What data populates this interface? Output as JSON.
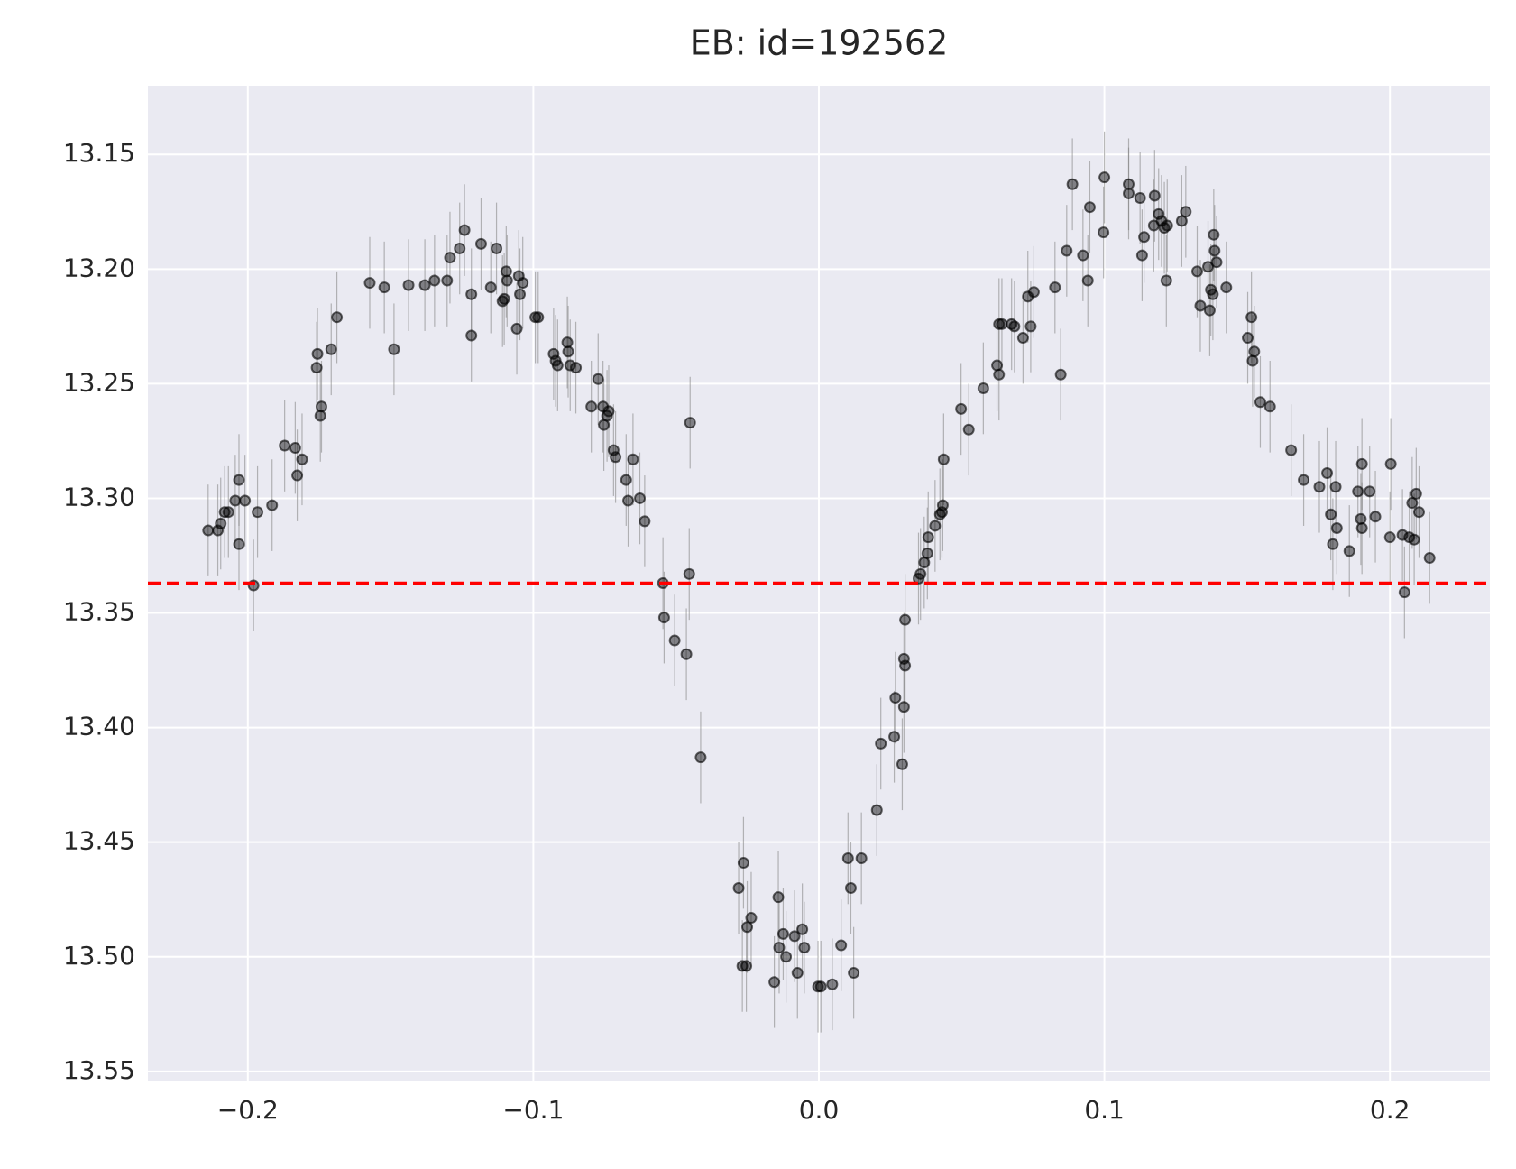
{
  "chart_data": {
    "type": "scatter",
    "title": "EB: id=192562",
    "xlim": [
      -0.235,
      0.235
    ],
    "xticks": [
      {
        "value": -0.2,
        "label": "−0.2"
      },
      {
        "value": -0.1,
        "label": "−0.1"
      },
      {
        "value": 0.0,
        "label": "0.0"
      },
      0.1,
      0.2
    ],
    "ylim": [
      13.554,
      13.12
    ],
    "invert_y": true,
    "yticks": [
      {
        "value": 13.15,
        "label": "13.15"
      },
      {
        "value": 13.2,
        "label": "13.20"
      },
      {
        "value": 13.25,
        "label": "13.25"
      },
      {
        "value": 13.3,
        "label": "13.30"
      },
      {
        "value": 13.35,
        "label": "13.35"
      },
      {
        "value": 13.4,
        "label": "13.40"
      },
      {
        "value": 13.45,
        "label": "13.45"
      },
      {
        "value": 13.5,
        "label": "13.50"
      },
      {
        "value": 13.55,
        "label": "13.55"
      }
    ],
    "grid": true,
    "color": "#000000",
    "yerr": 0.02,
    "hline": 13.337,
    "hline_color": "#ff0000",
    "x": [
      -0.2139,
      -0.2105,
      -0.2095,
      -0.2081,
      -0.2068,
      -0.2044,
      -0.2031,
      -0.2031,
      -0.201,
      -0.198,
      -0.1966,
      -0.1915,
      -0.1871,
      -0.1834,
      -0.1827,
      -0.181,
      -0.1759,
      -0.1756,
      -0.1746,
      -0.1742,
      -0.1708,
      -0.1688,
      -0.1573,
      -0.1522,
      -0.1488,
      -0.1437,
      -0.138,
      -0.1346,
      -0.1302,
      -0.1292,
      -0.1258,
      -0.1241,
      -0.1217,
      -0.1217,
      -0.1183,
      -0.1149,
      -0.1129,
      -0.1108,
      -0.1102,
      -0.1095,
      -0.1092,
      -0.1058,
      -0.1051,
      -0.1047,
      -0.1037,
      -0.0993,
      -0.0983,
      -0.0929,
      -0.0922,
      -0.0915,
      -0.0881,
      -0.0878,
      -0.0871,
      -0.0851,
      -0.0797,
      -0.0773,
      -0.0756,
      -0.0753,
      -0.0742,
      -0.0736,
      -0.0719,
      -0.0712,
      -0.0675,
      -0.0668,
      -0.0651,
      -0.0627,
      -0.061,
      -0.0546,
      -0.0542,
      -0.0505,
      -0.0464,
      -0.0454,
      -0.0451,
      -0.0414,
      -0.0281,
      -0.0268,
      -0.0264,
      -0.0254,
      -0.0251,
      -0.0237,
      -0.0156,
      -0.0142,
      -0.0139,
      -0.0125,
      -0.0115,
      -0.0085,
      -0.0075,
      -0.0058,
      -0.0051,
      -0.0003,
      0.0007,
      0.0047,
      0.0078,
      0.0102,
      0.0112,
      0.0122,
      0.0149,
      0.0203,
      0.0217,
      0.0264,
      0.0268,
      0.0292,
      0.0298,
      0.0298,
      0.0302,
      0.0302,
      0.0349,
      0.0356,
      0.0369,
      0.038,
      0.0383,
      0.0407,
      0.0424,
      0.0431,
      0.0434,
      0.0437,
      0.0498,
      0.0525,
      0.0576,
      0.0624,
      0.0631,
      0.0631,
      0.0641,
      0.0675,
      0.0685,
      0.0715,
      0.0732,
      0.0742,
      0.0753,
      0.0827,
      0.0847,
      0.0868,
      0.0888,
      0.0925,
      0.0942,
      0.0949,
      0.0997,
      0.1,
      0.1085,
      0.1085,
      0.1125,
      0.1132,
      0.1139,
      0.1176,
      0.1173,
      0.119,
      0.12,
      0.121,
      0.1217,
      0.122,
      0.1271,
      0.1285,
      0.1325,
      0.1336,
      0.1363,
      0.1369,
      0.1373,
      0.138,
      0.1383,
      0.1386,
      0.1393,
      0.1427,
      0.1502,
      0.1515,
      0.1519,
      0.1525,
      0.1546,
      0.158,
      0.1654,
      0.1698,
      0.1753,
      0.178,
      0.1793,
      0.18,
      0.181,
      0.1814,
      0.1858,
      0.1888,
      0.1898,
      0.1902,
      0.1902,
      0.1929,
      0.1949,
      0.2,
      0.2003,
      0.2044,
      0.2051,
      0.2068,
      0.2078,
      0.2085,
      0.2092,
      0.2102,
      0.2139
    ],
    "y": [
      13.314,
      13.314,
      13.311,
      13.306,
      13.306,
      13.301,
      13.292,
      13.32,
      13.301,
      13.338,
      13.306,
      13.303,
      13.277,
      13.278,
      13.29,
      13.283,
      13.243,
      13.237,
      13.264,
      13.26,
      13.235,
      13.221,
      13.206,
      13.208,
      13.235,
      13.207,
      13.207,
      13.205,
      13.205,
      13.195,
      13.191,
      13.183,
      13.229,
      13.211,
      13.189,
      13.208,
      13.191,
      13.214,
      13.213,
      13.201,
      13.205,
      13.226,
      13.203,
      13.211,
      13.206,
      13.221,
      13.221,
      13.237,
      13.24,
      13.242,
      13.232,
      13.236,
      13.242,
      13.243,
      13.26,
      13.248,
      13.26,
      13.268,
      13.264,
      13.262,
      13.279,
      13.282,
      13.292,
      13.301,
      13.283,
      13.3,
      13.31,
      13.337,
      13.352,
      13.362,
      13.368,
      13.333,
      13.267,
      13.413,
      13.47,
      13.504,
      13.459,
      13.504,
      13.487,
      13.483,
      13.511,
      13.474,
      13.496,
      13.49,
      13.5,
      13.491,
      13.507,
      13.488,
      13.496,
      13.513,
      13.513,
      13.512,
      13.495,
      13.457,
      13.47,
      13.507,
      13.457,
      13.436,
      13.407,
      13.404,
      13.387,
      13.416,
      13.391,
      13.37,
      13.373,
      13.353,
      13.335,
      13.333,
      13.328,
      13.324,
      13.317,
      13.312,
      13.307,
      13.306,
      13.303,
      13.283,
      13.261,
      13.27,
      13.252,
      13.242,
      13.246,
      13.224,
      13.224,
      13.224,
      13.225,
      13.23,
      13.212,
      13.225,
      13.21,
      13.208,
      13.246,
      13.192,
      13.163,
      13.194,
      13.205,
      13.173,
      13.184,
      13.16,
      13.163,
      13.167,
      13.169,
      13.194,
      13.186,
      13.168,
      13.181,
      13.176,
      13.179,
      13.182,
      13.205,
      13.181,
      13.179,
      13.175,
      13.201,
      13.216,
      13.199,
      13.218,
      13.209,
      13.211,
      13.185,
      13.192,
      13.197,
      13.208,
      13.23,
      13.221,
      13.24,
      13.236,
      13.258,
      13.26,
      13.279,
      13.292,
      13.295,
      13.289,
      13.307,
      13.32,
      13.295,
      13.313,
      13.323,
      13.297,
      13.309,
      13.285,
      13.313,
      13.297,
      13.308,
      13.317,
      13.285,
      13.316,
      13.341,
      13.317,
      13.302,
      13.318,
      13.298,
      13.306,
      13.326
    ]
  }
}
